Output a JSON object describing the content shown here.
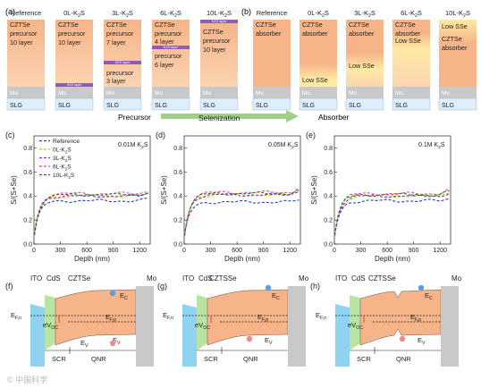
{
  "panel_a": {
    "label": "(a)",
    "columns": [
      {
        "header": "Reference",
        "header_sub": "",
        "layers": [
          {
            "text": "CZTSe",
            "kind": "czts"
          },
          {
            "text": "precursor",
            "kind": "czts"
          },
          {
            "text": "10 layer",
            "kind": "czts"
          }
        ]
      },
      {
        "header": "0L-K",
        "header_sub": "2",
        "header_tail": "S",
        "layers": [
          {
            "text": "CZTSe",
            "kind": "czts"
          },
          {
            "text": "precursor",
            "kind": "czts"
          },
          {
            "text": "10 layer",
            "kind": "czts"
          }
        ],
        "thin": "K2S layer"
      },
      {
        "header": "3L-K",
        "header_sub": "2",
        "header_tail": "S",
        "layers": [
          {
            "text": "CZTSe",
            "kind": "czts"
          },
          {
            "text": "precursor",
            "kind": "czts"
          },
          {
            "text": "7 layer",
            "kind": "czts"
          },
          {
            "text": "precursor",
            "kind": "czts"
          },
          {
            "text": "3 layer",
            "kind": "czts"
          }
        ],
        "thin": "K2S layer"
      },
      {
        "header": "6L-K",
        "header_sub": "2",
        "header_tail": "S",
        "layers": [
          {
            "text": "CZTSe",
            "kind": "czts"
          },
          {
            "text": "precursor",
            "kind": "czts"
          },
          {
            "text": "4 layer",
            "kind": "czts"
          },
          {
            "text": "precursor",
            "kind": "czts"
          },
          {
            "text": "6 layer",
            "kind": "czts"
          }
        ],
        "thin": "K2S layer"
      },
      {
        "header": "10L-K",
        "header_sub": "2",
        "header_tail": "S",
        "layers": [
          {
            "text": "CZTSe",
            "kind": "czts"
          },
          {
            "text": "precursor",
            "kind": "czts"
          },
          {
            "text": "10 layer",
            "kind": "czts"
          }
        ],
        "thin": "K2S layer"
      }
    ],
    "mo": "Mo",
    "slg": "SLG",
    "precursor_label": "Precursor"
  },
  "arrow_label": "Selenization",
  "panel_b": {
    "label": "(b)",
    "headers": [
      "Reference",
      "0L-K",
      "3L-K",
      "6L-K",
      "10L-K"
    ],
    "header_sub": "2",
    "header_tail": "S",
    "absorber_text": [
      "CZTSe",
      "absorber"
    ],
    "low_sse": "Low SSe",
    "mo": "Mo",
    "slg": "SLG",
    "absorber_label": "Absorber"
  },
  "plots": [
    {
      "label": "(c)",
      "concentration": "0.01M K",
      "conc_sub": "2",
      "conc_tail": "S"
    },
    {
      "label": "(d)",
      "concentration": "0.05M K",
      "conc_sub": "2",
      "conc_tail": "S"
    },
    {
      "label": "(e)",
      "concentration": "0.1M K",
      "conc_sub": "2",
      "conc_tail": "S"
    }
  ],
  "plot_axes": {
    "ylabel": "S/(S+Se)",
    "xlabel": "Depth (nm)",
    "xticks": [
      "0",
      "300",
      "600",
      "900",
      "1200"
    ],
    "yticks": [
      "0.0",
      "0.2",
      "0.4",
      "0.6",
      "0.8"
    ]
  },
  "legend": [
    {
      "name": "Reference",
      "color": "#1f3fbf"
    },
    {
      "name": "0L-K",
      "sub": "2",
      "tail": "S",
      "color": "#c9c400"
    },
    {
      "name": "3L-K",
      "sub": "2",
      "tail": "S",
      "color": "#8a2be2"
    },
    {
      "name": "6L-K",
      "sub": "2",
      "tail": "S",
      "color": "#ff3fa0"
    },
    {
      "name": "10L-K",
      "sub": "2",
      "tail": "S",
      "color": "#1a7a1a"
    }
  ],
  "band_panels": [
    {
      "label": "(f)"
    },
    {
      "label": "(g)"
    },
    {
      "label": "(h)"
    }
  ],
  "band_text": {
    "ito": "ITO",
    "cds": "CdS",
    "czts": "CZTSe",
    "cztsse": "CZTSSe",
    "mo": "Mo",
    "ec": "E",
    "ec_sub": "C",
    "ev": "E",
    "ev_sub": "V",
    "efn": "E",
    "efn_sub": "F,n",
    "efp": "E",
    "efp_sub": "F,p",
    "evoc": "eV",
    "evoc_sub": "OC",
    "scr": "SCR",
    "qnr": "QNR"
  },
  "watermark": "©  中国科学",
  "colors": {
    "czts": "#f6b488",
    "czts_light": "#fbd3b1",
    "low_sse": "#ffe9a3",
    "mo": "#c9c9c9",
    "slg": "#dfeefb",
    "k2s": "#8e5bb8",
    "ito": "#8fd3f0",
    "cds": "#b8e3a0",
    "band": "#f6b488"
  }
}
